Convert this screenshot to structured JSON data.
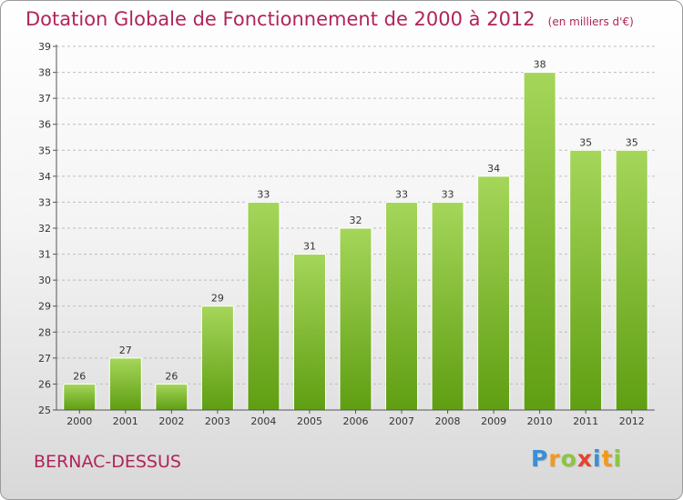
{
  "title": "Dotation Globale de Fonctionnement de 2000 à 2012",
  "unit_note": "(en milliers d'€)",
  "commune": "BERNAC-DESSUS",
  "logo": {
    "letters": [
      {
        "ch": "P",
        "color": "#3a8fd6"
      },
      {
        "ch": "r",
        "color": "#f29a1a"
      },
      {
        "ch": "o",
        "color": "#8cc63f"
      },
      {
        "ch": "x",
        "color": "#e8412c"
      },
      {
        "ch": "i",
        "color": "#3a8fd6"
      },
      {
        "ch": "t",
        "color": "#f29a1a"
      },
      {
        "ch": "i",
        "color": "#8cc63f"
      }
    ]
  },
  "colors": {
    "title": "#b0245a",
    "bar_light": "#a5d65a",
    "bar_dark": "#5f9e12",
    "grid": "#bdbdbd",
    "axis": "#555555"
  },
  "chart_data": {
    "type": "bar",
    "categories": [
      "2000",
      "2001",
      "2002",
      "2003",
      "2004",
      "2005",
      "2006",
      "2007",
      "2008",
      "2009",
      "2010",
      "2011",
      "2012"
    ],
    "values": [
      26,
      27,
      26,
      29,
      33,
      31,
      32,
      33,
      33,
      34,
      38,
      35,
      35
    ],
    "title": "Dotation Globale de Fonctionnement de 2000 à 2012",
    "subtitle": "(en milliers d'€)",
    "xlabel": "",
    "ylabel": "",
    "ylim": [
      25,
      39
    ],
    "yticks": [
      25,
      26,
      27,
      28,
      29,
      30,
      31,
      32,
      33,
      34,
      35,
      36,
      37,
      38,
      39
    ],
    "grid": true,
    "data_labels": true
  }
}
